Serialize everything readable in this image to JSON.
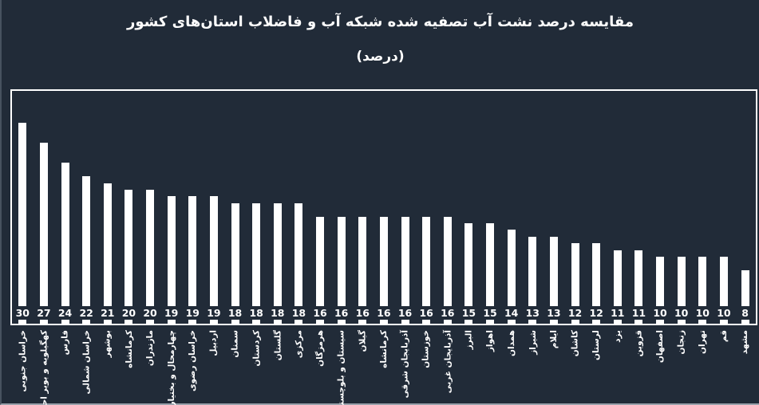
{
  "title": {
    "line1": "مقایسه درصد نشت آب تصفیه شده شبکه آب و فاضلاب استان‌های کشور",
    "line2": "(درصد)"
  },
  "colors": {
    "background": "#212b38",
    "bar": "#ffffff",
    "text": "#ffffff",
    "plot_border": "#ffffff"
  },
  "chart_data": {
    "type": "bar",
    "title": "مقایسه درصد نشت آب تصفیه شده شبکه آب و فاضلاب استان‌های کشور",
    "subtitle": "(درصد)",
    "xlabel": "",
    "ylabel": "درصد",
    "ylim": [
      0,
      30
    ],
    "grid": false,
    "legend": false,
    "value_labels_position": "bottom-inside",
    "category_label_rotation": -90,
    "categories": [
      "خراسان جنوبی",
      "کهگیلویه و بویر احمد",
      "فارس",
      "خراسان شمالی",
      "بوشهر",
      "کرمانشاه",
      "مازندران",
      "چهارمحال و بختیاری",
      "خراسان رضوی",
      "اردبیل",
      "سمنان",
      "کردستان",
      "گلستان",
      "مرکزی",
      "هرمزگان",
      "سیستان و بلوچستان",
      "گیلان",
      "کرمانشاه",
      "آذربایجان شرقی",
      "خوزستان",
      "آذربایجان غربی",
      "البرز",
      "اهواز",
      "همدان",
      "شیراز",
      "ایلام",
      "کاشان",
      "لرستان",
      "یزد",
      "قزوین",
      "اصفهان",
      "زنجان",
      "تهران",
      "قم",
      "مشهد"
    ],
    "values": [
      30,
      27,
      24,
      22,
      21,
      20,
      20,
      19,
      19,
      19,
      18,
      18,
      18,
      18,
      16,
      16,
      16,
      16,
      16,
      16,
      16,
      15,
      15,
      14,
      13,
      13,
      12,
      12,
      11,
      11,
      10,
      10,
      10,
      10,
      8
    ]
  }
}
